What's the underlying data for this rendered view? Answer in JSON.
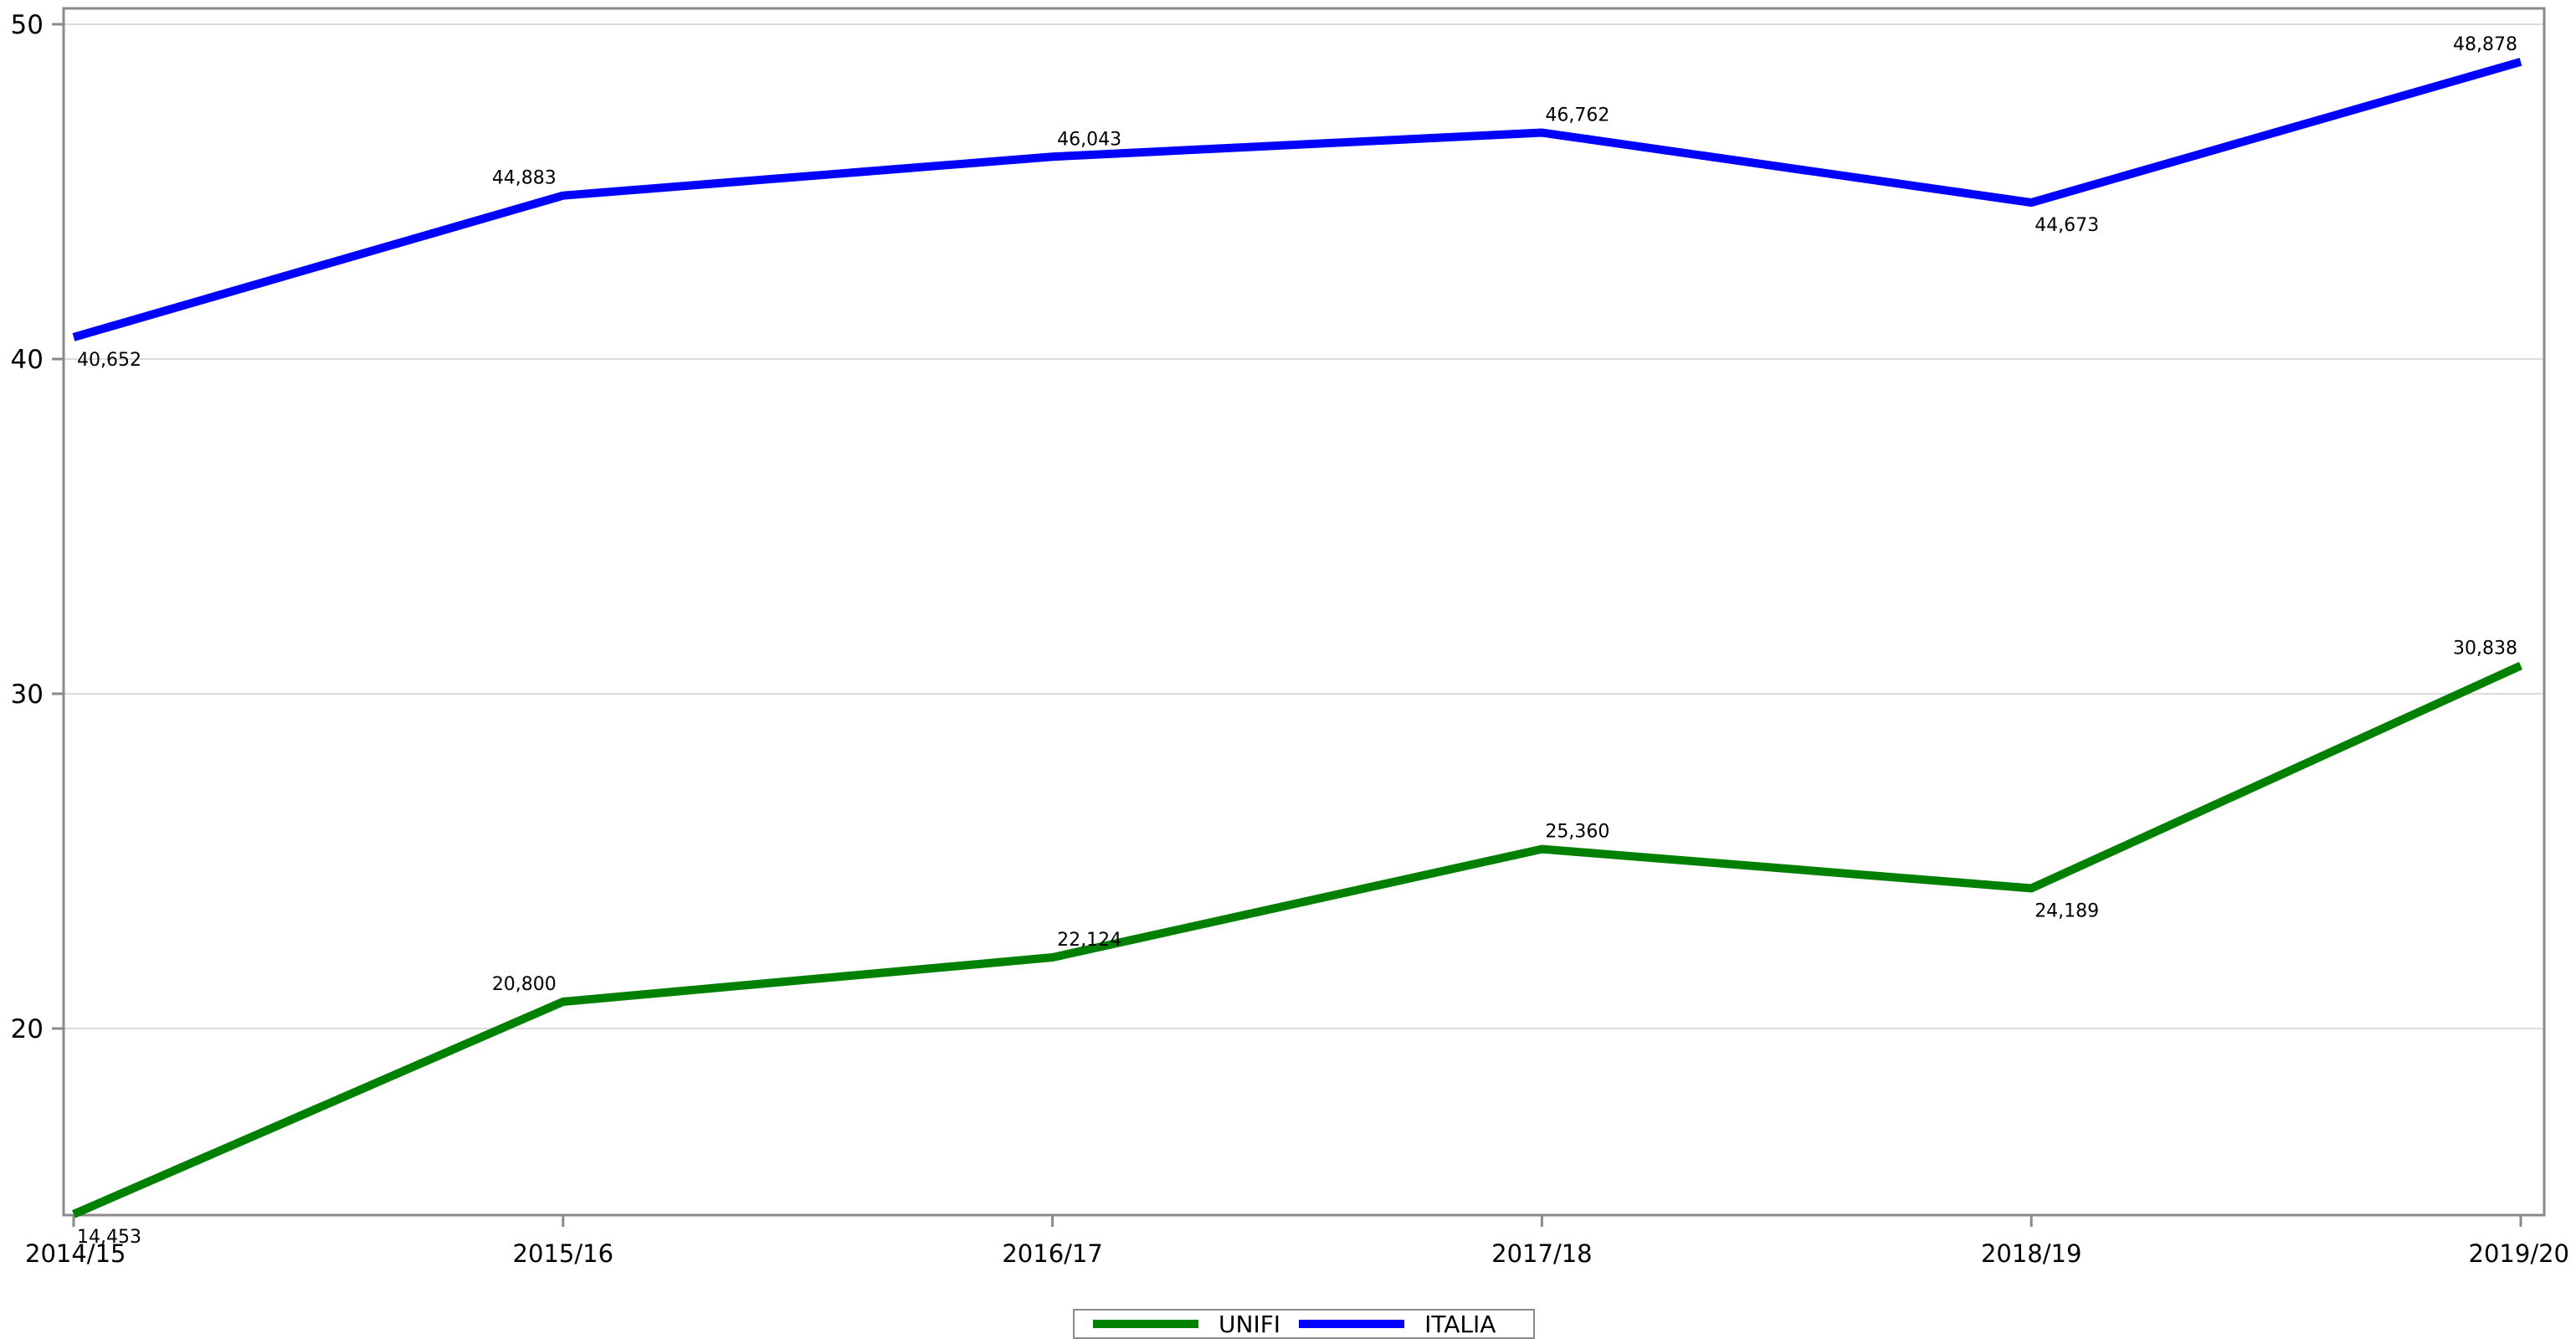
{
  "chart_data": {
    "type": "line",
    "categories": [
      "2014/15",
      "2015/16",
      "2016/17",
      "2017/18",
      "2018/19",
      "2019/20"
    ],
    "series": [
      {
        "name": "UNIFI",
        "color": "#008000",
        "values": [
          14.453,
          20.8,
          22.124,
          25.36,
          24.189,
          30.838
        ],
        "labels": [
          "14,453",
          "20,800",
          "22,124",
          "25,360",
          "24,189",
          "30,838"
        ],
        "label_positions": [
          "below",
          "above",
          "above",
          "above",
          "below",
          "above"
        ]
      },
      {
        "name": "ITALIA",
        "color": "#0000ff",
        "values": [
          40.652,
          44.883,
          46.043,
          46.762,
          44.673,
          48.878
        ],
        "labels": [
          "40,652",
          "44,883",
          "46,043",
          "46,762",
          "44,673",
          "48,878"
        ],
        "label_positions": [
          "below",
          "above",
          "above",
          "above",
          "below",
          "above"
        ]
      }
    ],
    "y_ticks": [
      20,
      30,
      40,
      50
    ],
    "y_tick_labels": [
      "20",
      "30",
      "40",
      "50"
    ],
    "ylim": [
      14.453,
      50.5
    ],
    "title": "",
    "xlabel": "",
    "ylabel": "",
    "grid": true,
    "legend_position": "bottom-center",
    "gridline_color": "#dcdcdc",
    "axis_color": "#8a8a8a"
  }
}
